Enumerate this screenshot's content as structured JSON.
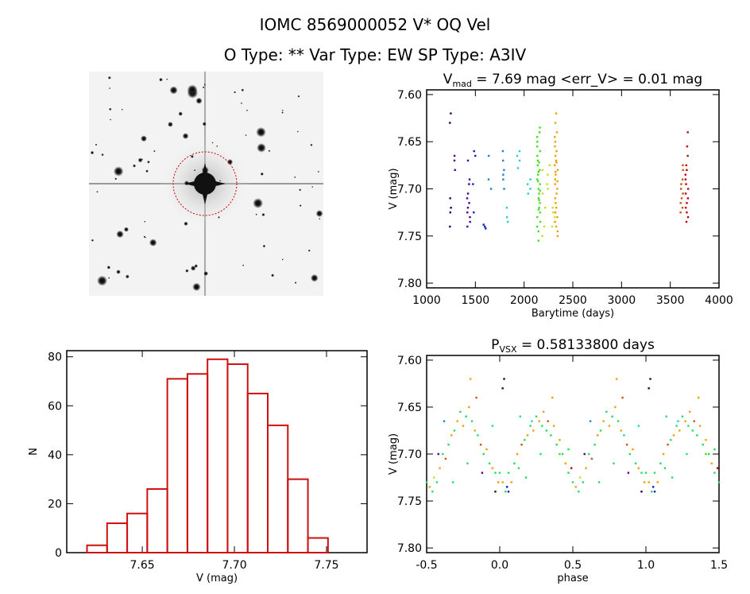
{
  "header": {
    "title": "IOMC 8569000052    V* OQ Vel",
    "subtitle": "O Type: **  Var Type: EW  SP Type: A3IV"
  },
  "colors": [
    "#2a0050",
    "#4b0090",
    "#1020c0",
    "#1e7fd0",
    "#20d0d0",
    "#20e060",
    "#40e020",
    "#c0e020",
    "#f0a000",
    "#d05010",
    "#c00000"
  ],
  "chart_data": [
    {
      "type": "image",
      "description_label": "",
      "marker": "red dashed circle around target star"
    },
    {
      "type": "scatter",
      "title_main": "V",
      "title_sub": "mad",
      "title_rest": " = 7.69 mag <err_V> = 0.01 mag",
      "xlabel": "Barytime (days)",
      "ylabel": "V (mag)",
      "xlim": [
        1000,
        4000
      ],
      "ylim": [
        7.805,
        7.595
      ],
      "xticks": [
        "1000",
        "1500",
        "2000",
        "2500",
        "3000",
        "3500",
        "4000"
      ],
      "yticks": [
        "7.60",
        "7.65",
        "7.70",
        "7.75",
        "7.80"
      ],
      "groups": [
        {
          "x": 1240,
          "color": 0,
          "y": [
            7.62,
            7.63,
            7.71,
            7.72,
            7.725,
            7.74
          ]
        },
        {
          "x": 1290,
          "color": 1,
          "y": [
            7.665,
            7.67,
            7.68
          ]
        },
        {
          "x": 1430,
          "color": 1,
          "y": [
            7.67,
            7.69,
            7.695,
            7.705,
            7.71,
            7.715,
            7.72,
            7.725,
            7.73,
            7.735,
            7.74
          ]
        },
        {
          "x": 1490,
          "color": 2,
          "y": [
            7.66,
            7.665,
            7.695,
            7.725
          ]
        },
        {
          "x": 1600,
          "color": 2,
          "y": [
            7.74,
            7.742,
            7.738
          ]
        },
        {
          "x": 1650,
          "color": 3,
          "y": [
            7.665,
            7.69,
            7.7
          ]
        },
        {
          "x": 1790,
          "color": 3,
          "y": [
            7.66,
            7.67,
            7.68,
            7.685,
            7.69,
            7.7
          ]
        },
        {
          "x": 1830,
          "color": 4,
          "y": [
            7.72,
            7.73,
            7.735
          ]
        },
        {
          "x": 1940,
          "color": 4,
          "y": [
            7.66,
            7.665,
            7.67,
            7.678
          ]
        },
        {
          "x": 2050,
          "color": 4,
          "y": [
            7.69,
            7.695,
            7.7,
            7.705
          ]
        },
        {
          "x": 2150,
          "color": 6,
          "y": [
            7.635,
            7.64,
            7.645,
            7.65,
            7.655,
            7.66,
            7.665,
            7.67,
            7.672,
            7.675,
            7.68,
            7.682,
            7.685,
            7.69,
            7.692,
            7.695,
            7.7,
            7.702,
            7.705,
            7.71,
            7.712,
            7.715,
            7.72,
            7.722,
            7.725,
            7.73,
            7.735,
            7.74,
            7.745,
            7.755
          ]
        },
        {
          "x": 2200,
          "color": 7,
          "y": [
            7.68,
            7.705,
            7.72,
            7.74,
            7.75
          ]
        },
        {
          "x": 2250,
          "color": 7,
          "y": [
            7.675,
            7.685,
            7.695,
            7.7
          ]
        },
        {
          "x": 2300,
          "color": 7,
          "y": [
            7.72,
            7.725,
            7.73,
            7.735,
            7.74
          ]
        },
        {
          "x": 2330,
          "color": 8,
          "y": [
            7.62,
            7.63,
            7.64,
            7.645,
            7.65,
            7.655,
            7.66,
            7.665,
            7.67,
            7.672,
            7.675,
            7.68,
            7.682,
            7.685,
            7.69,
            7.692,
            7.695,
            7.7,
            7.705,
            7.71,
            7.715,
            7.72,
            7.725,
            7.73,
            7.735,
            7.74,
            7.745,
            7.75
          ]
        },
        {
          "x": 3620,
          "color": 9,
          "y": [
            7.675,
            7.68,
            7.69,
            7.695,
            7.7,
            7.705,
            7.71,
            7.715,
            7.72,
            7.725
          ]
        },
        {
          "x": 3670,
          "color": 10,
          "y": [
            7.64,
            7.655,
            7.665,
            7.675,
            7.68,
            7.685,
            7.69,
            7.695,
            7.7,
            7.705,
            7.71,
            7.715,
            7.72,
            7.725,
            7.73,
            7.735
          ]
        }
      ]
    },
    {
      "type": "bar",
      "xlabel": "V (mag)",
      "ylabel": "N",
      "xlim": [
        7.609,
        7.772
      ],
      "ylim": [
        0,
        82.5
      ],
      "xticks": [
        "7.65",
        "7.70",
        "7.75"
      ],
      "yticks": [
        "0",
        "20",
        "40",
        "60",
        "80"
      ],
      "bin_start": 7.62,
      "bin_width": 0.0109,
      "values": [
        3,
        12,
        16,
        26,
        71,
        73,
        79,
        77,
        65,
        52,
        30,
        6
      ],
      "color": "#cc1111"
    },
    {
      "type": "scatter",
      "title_main": "P",
      "title_sub": "VSX",
      "title_rest": " = 0.58133800 days",
      "xlabel": "phase",
      "ylabel": "V (mag)",
      "xlim": [
        -0.5,
        1.5
      ],
      "ylim": [
        7.805,
        7.595
      ],
      "xticks": [
        "-0.5",
        "0.0",
        "0.5",
        "1.0",
        "1.5"
      ],
      "yticks": [
        "7.60",
        "7.65",
        "7.70",
        "7.75",
        "7.80"
      ],
      "points": [
        [
          0.0,
          7.72,
          5
        ],
        [
          0.02,
          7.73,
          8
        ],
        [
          0.04,
          7.74,
          5
        ],
        [
          0.05,
          7.735,
          2
        ],
        [
          0.06,
          7.72,
          5
        ],
        [
          0.08,
          7.73,
          8
        ],
        [
          0.1,
          7.71,
          5
        ],
        [
          0.12,
          7.7,
          8
        ],
        [
          0.13,
          7.715,
          5
        ],
        [
          0.15,
          7.69,
          9
        ],
        [
          0.17,
          7.685,
          5
        ],
        [
          0.19,
          7.68,
          8
        ],
        [
          0.21,
          7.67,
          5
        ],
        [
          0.23,
          7.675,
          8
        ],
        [
          0.25,
          7.66,
          5
        ],
        [
          0.27,
          7.665,
          8
        ],
        [
          0.29,
          7.67,
          5
        ],
        [
          0.3,
          7.655,
          8
        ],
        [
          0.32,
          7.675,
          5
        ],
        [
          0.33,
          7.665,
          9
        ],
        [
          0.35,
          7.68,
          5
        ],
        [
          0.37,
          7.67,
          8
        ],
        [
          0.39,
          7.69,
          5
        ],
        [
          0.41,
          7.685,
          8
        ],
        [
          0.43,
          7.7,
          5
        ],
        [
          0.45,
          7.71,
          8
        ],
        [
          0.47,
          7.72,
          5
        ],
        [
          0.49,
          7.715,
          10
        ],
        [
          0.5,
          7.73,
          5
        ],
        [
          0.52,
          7.735,
          8
        ],
        [
          0.54,
          7.74,
          5
        ],
        [
          0.55,
          7.725,
          7
        ],
        [
          0.57,
          7.73,
          5
        ],
        [
          0.59,
          7.715,
          8
        ],
        [
          0.61,
          7.7,
          5
        ],
        [
          0.63,
          7.705,
          9
        ],
        [
          0.65,
          7.69,
          5
        ],
        [
          0.67,
          7.68,
          8
        ],
        [
          0.69,
          7.675,
          5
        ],
        [
          0.71,
          7.665,
          8
        ],
        [
          0.73,
          7.655,
          5
        ],
        [
          0.75,
          7.67,
          8
        ],
        [
          0.77,
          7.66,
          5
        ],
        [
          0.79,
          7.65,
          8
        ],
        [
          0.8,
          7.62,
          8
        ],
        [
          0.81,
          7.665,
          5
        ],
        [
          0.83,
          7.675,
          8
        ],
        [
          0.85,
          7.68,
          5
        ],
        [
          0.87,
          7.69,
          9
        ],
        [
          0.89,
          7.7,
          5
        ],
        [
          0.91,
          7.695,
          8
        ],
        [
          0.93,
          7.71,
          5
        ],
        [
          0.95,
          7.715,
          8
        ],
        [
          0.97,
          7.72,
          5
        ],
        [
          0.99,
          7.73,
          8
        ],
        [
          0.03,
          7.62,
          0
        ],
        [
          0.02,
          7.63,
          0
        ],
        [
          0.22,
          7.665,
          4
        ],
        [
          0.62,
          7.665,
          3
        ],
        [
          0.95,
          7.67,
          4
        ],
        [
          0.41,
          7.7,
          6
        ],
        [
          0.06,
          7.74,
          2
        ],
        [
          0.58,
          7.7,
          1
        ],
        [
          0.88,
          7.72,
          1
        ],
        [
          0.14,
          7.66,
          4
        ],
        [
          0.47,
          7.695,
          5
        ],
        [
          0.97,
          7.74,
          0
        ],
        [
          0.36,
          7.64,
          8
        ],
        [
          0.84,
          7.64,
          9
        ],
        [
          0.28,
          7.7,
          5
        ],
        [
          0.78,
          7.71,
          5
        ],
        [
          0.18,
          7.725,
          5
        ],
        [
          0.68,
          7.73,
          5
        ]
      ]
    }
  ]
}
